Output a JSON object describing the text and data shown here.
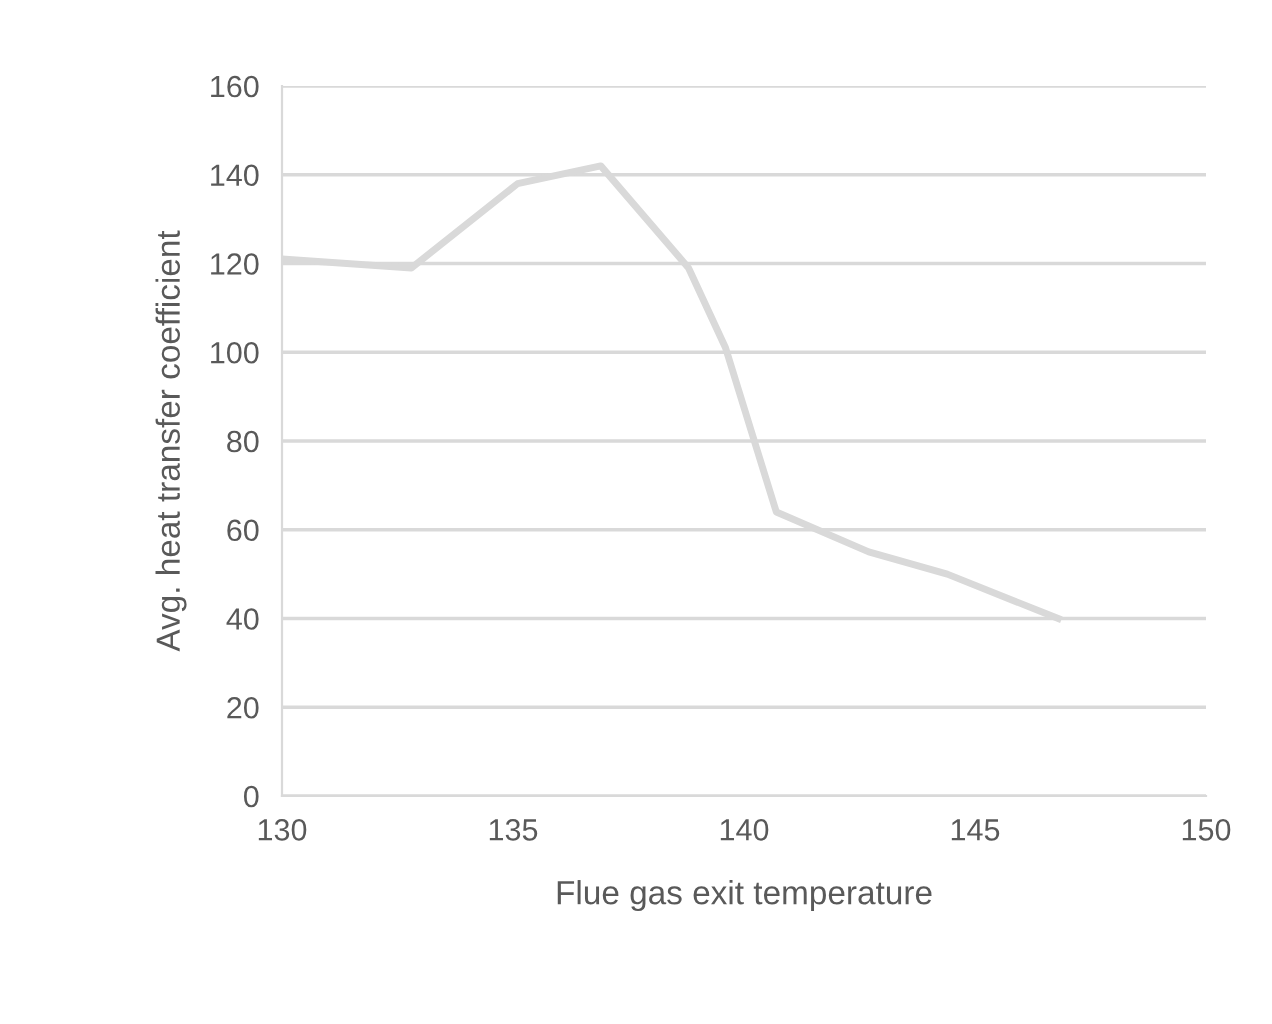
{
  "chart_data": {
    "type": "line",
    "xlabel": "Flue gas exit temperature",
    "ylabel": "Avg. heat transfer coefficient",
    "x": [
      130,
      132.8,
      135.1,
      136.9,
      138.8,
      139.6,
      140.7,
      142.7,
      144.4,
      146.8
    ],
    "series": [
      {
        "color": "#d9d9d9",
        "values": [
          121,
          119,
          138,
          142,
          119,
          101,
          64,
          55,
          50,
          40
        ]
      }
    ],
    "xlim": [
      130,
      150
    ],
    "xticks": [
      130,
      135,
      140,
      145,
      150
    ],
    "ylim": [
      0,
      160
    ],
    "yticks": [
      0,
      20,
      40,
      60,
      80,
      100,
      120,
      140,
      160
    ],
    "grid": "y",
    "legend": false,
    "marker": "none",
    "line_style": "solid"
  }
}
